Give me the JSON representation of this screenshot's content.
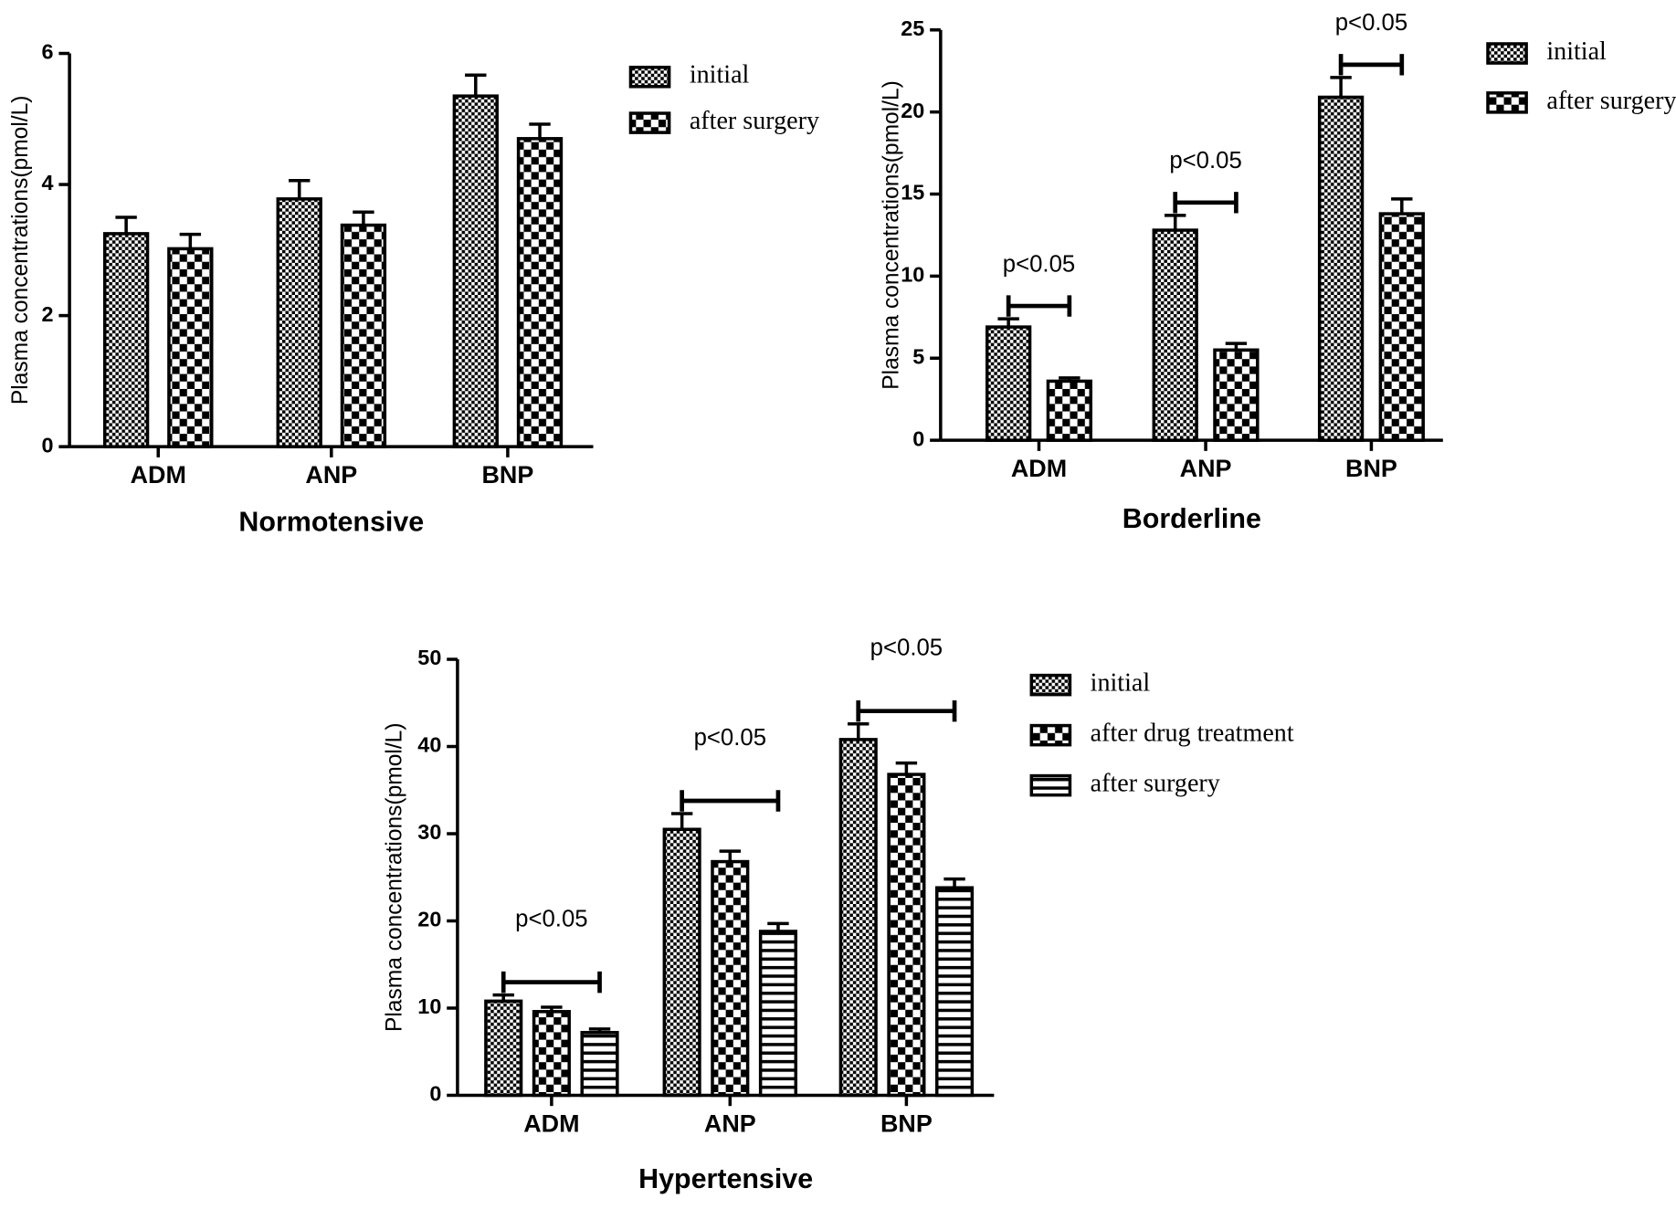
{
  "chart_data": [
    {
      "type": "bar",
      "title": "Normotensive",
      "ylabel": "Plasma concentrations(pmol/L)",
      "categories": [
        "ADM",
        "ANP",
        "BNP"
      ],
      "series": [
        {
          "name": "initial",
          "color": "#000000",
          "pattern": "fine-check",
          "values": [
            3.25,
            3.78,
            5.35
          ],
          "errors": [
            0.25,
            0.28,
            0.32
          ]
        },
        {
          "name": "after surgery",
          "color": "#000000",
          "pattern": "coarse-check",
          "values": [
            3.02,
            3.38,
            4.7
          ],
          "errors": [
            0.22,
            0.2,
            0.22
          ]
        }
      ],
      "ylim": [
        0,
        6
      ],
      "yticks": [
        0,
        2,
        4,
        6
      ]
    },
    {
      "type": "bar",
      "title": "Borderline",
      "ylabel": "Plasma concentrations(pmol/L)",
      "categories": [
        "ADM",
        "ANP",
        "BNP"
      ],
      "series": [
        {
          "name": "initial",
          "color": "#000000",
          "pattern": "fine-check",
          "values": [
            6.9,
            12.8,
            20.9
          ],
          "errors": [
            0.5,
            0.9,
            1.2
          ]
        },
        {
          "name": "after surgery",
          "color": "#000000",
          "pattern": "coarse-check",
          "values": [
            3.6,
            5.5,
            13.8
          ],
          "errors": [
            0.2,
            0.4,
            0.9
          ]
        }
      ],
      "annotations": [
        "p<0.05",
        "p<0.05",
        "p<0.05"
      ],
      "ylim": [
        0,
        25
      ],
      "yticks": [
        0,
        5,
        10,
        15,
        20,
        25
      ]
    },
    {
      "type": "bar",
      "title": "Hypertensive",
      "ylabel": "Plasma concentrations(pmol/L)",
      "categories": [
        "ADM",
        "ANP",
        "BNP"
      ],
      "series": [
        {
          "name": "initial",
          "color": "#000000",
          "pattern": "fine-check",
          "values": [
            10.8,
            30.5,
            40.8
          ],
          "errors": [
            0.7,
            1.8,
            1.8
          ]
        },
        {
          "name": "after drug treatment",
          "color": "#000000",
          "pattern": "coarse-check",
          "values": [
            9.6,
            26.8,
            36.8
          ],
          "errors": [
            0.5,
            1.2,
            1.3
          ]
        },
        {
          "name": "after surgery",
          "color": "#000000",
          "pattern": "stripes",
          "values": [
            7.2,
            18.8,
            23.8
          ],
          "errors": [
            0.4,
            0.9,
            1.0
          ]
        }
      ],
      "annotations": [
        "p<0.05",
        "p<0.05",
        "p<0.05"
      ],
      "ylim": [
        0,
        50
      ],
      "yticks": [
        0,
        10,
        20,
        30,
        40,
        50
      ]
    }
  ]
}
